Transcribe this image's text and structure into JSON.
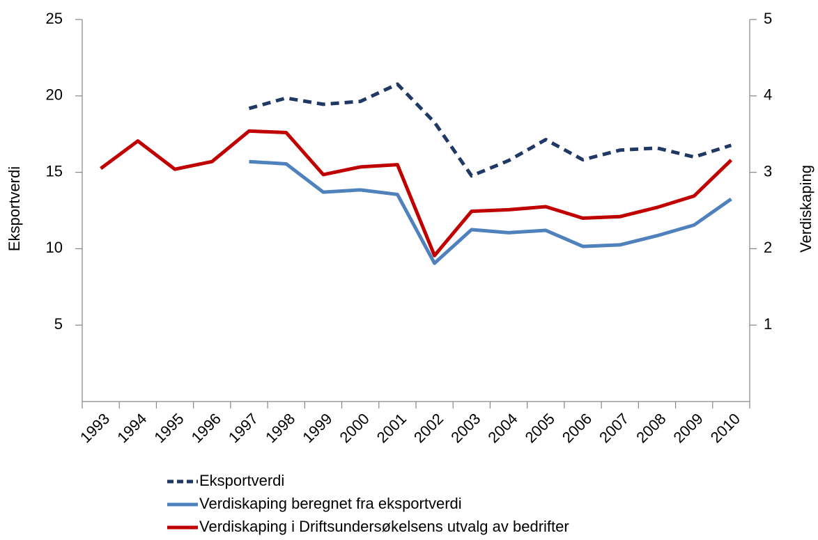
{
  "chart_data": {
    "type": "line",
    "y_label": "Eksportverdi",
    "y2_label": "Verdiskaping",
    "categories": [
      "1993",
      "1994",
      "1995",
      "1996",
      "1997",
      "1998",
      "1999",
      "2000",
      "2001",
      "2002",
      "2003",
      "2004",
      "2005",
      "2006",
      "2007",
      "2008",
      "2009",
      "2010"
    ],
    "series": [
      {
        "name": "Eksportverdi",
        "color": "#1f3864",
        "dashed": true,
        "axis": "y",
        "values": [
          null,
          null,
          null,
          null,
          19.18,
          19.86,
          19.45,
          19.64,
          20.77,
          18.27,
          14.77,
          15.77,
          17.14,
          15.82,
          16.45,
          16.59,
          16.0,
          16.77
        ]
      },
      {
        "name": "Verdiskaping beregnet fra eksportverdi",
        "color": "#4f81bd",
        "axis": "y2",
        "values": [
          null,
          null,
          null,
          null,
          3.14,
          3.11,
          2.74,
          2.77,
          2.71,
          1.81,
          2.25,
          2.21,
          2.24,
          2.03,
          2.05,
          2.17,
          2.31,
          2.65
        ]
      },
      {
        "name": "Verdiskaping i Driftsundersøkelsens utvalg av bedrifter",
        "color": "#c00000",
        "axis": "y2",
        "values": [
          3.05,
          3.41,
          3.04,
          3.14,
          3.54,
          3.52,
          2.97,
          3.07,
          3.1,
          1.91,
          2.49,
          2.51,
          2.55,
          2.4,
          2.42,
          2.54,
          2.69,
          3.16
        ]
      }
    ],
    "ylim": [
      0,
      25
    ],
    "yticks": [
      5,
      10,
      15,
      20,
      25
    ],
    "y2lim": [
      0,
      5
    ],
    "y2ticks": [
      1,
      2,
      3,
      4,
      5
    ],
    "legend": "bottom"
  }
}
